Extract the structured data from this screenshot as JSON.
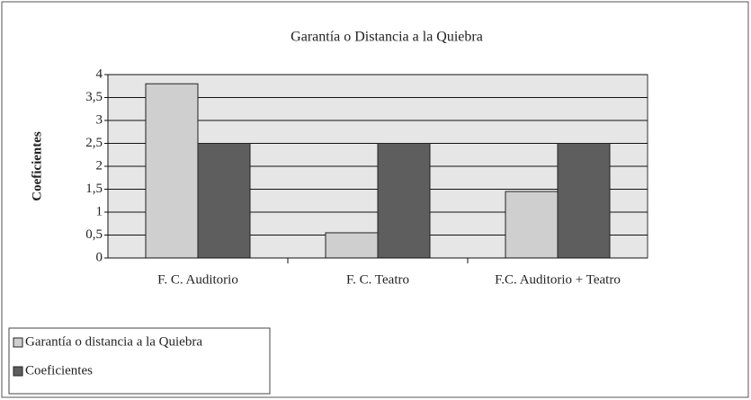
{
  "chart_data": {
    "type": "bar",
    "title": "Garantía o Distancia a la Quiebra",
    "y_label": "Coeficientes",
    "categories": [
      "F. C. Auditorio",
      "F. C. Teatro",
      "F.C. Auditorio + Teatro"
    ],
    "series": [
      {
        "name": "Garantía o distancia a la Quiebra",
        "color": "#cfcfcf",
        "values": [
          3.8,
          0.55,
          1.45
        ]
      },
      {
        "name": "Coeficientes",
        "color": "#5e5e5e",
        "values": [
          2.5,
          2.5,
          2.5
        ]
      }
    ],
    "ylim": [
      0,
      4
    ],
    "yticks": [
      0,
      {
        "value": 0.5,
        "label": "0,5"
      },
      1,
      {
        "value": 1.5,
        "label": "1,5"
      },
      2,
      {
        "value": 2.5,
        "label": "2,5"
      },
      3,
      {
        "value": 3.5,
        "label": "3,5"
      },
      4
    ],
    "grid": true
  }
}
